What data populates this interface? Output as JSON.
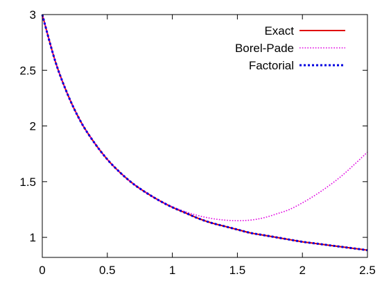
{
  "chart_data": {
    "type": "line",
    "title": "",
    "xlabel": "",
    "ylabel": "",
    "xlim": [
      0,
      2.5
    ],
    "ylim": [
      0.82,
      3.0
    ],
    "xticks": [
      0,
      0.5,
      1,
      1.5,
      2,
      2.5
    ],
    "xtick_labels": [
      "0",
      "0.5",
      "1",
      "1.5",
      "2",
      "2.5"
    ],
    "yticks": [
      1,
      1.5,
      2,
      2.5,
      3
    ],
    "ytick_labels": [
      "1",
      "1.5",
      "2",
      "2.5",
      "3"
    ],
    "grid": false,
    "legend": "top-right",
    "series": [
      {
        "name": "Exact",
        "color": "#e00000",
        "style": "solid",
        "x": [
          0,
          0.1,
          0.2,
          0.3,
          0.4,
          0.5,
          0.6,
          0.7,
          0.8,
          0.9,
          1.0,
          1.1,
          1.2,
          1.3,
          1.4,
          1.5,
          1.6,
          1.7,
          1.8,
          1.9,
          2.0,
          2.1,
          2.2,
          2.3,
          2.4,
          2.5
        ],
        "y": [
          3.0,
          2.58,
          2.27,
          2.03,
          1.85,
          1.7,
          1.58,
          1.48,
          1.4,
          1.33,
          1.27,
          1.22,
          1.17,
          1.13,
          1.1,
          1.07,
          1.04,
          1.02,
          1.0,
          0.98,
          0.96,
          0.945,
          0.93,
          0.915,
          0.9,
          0.885
        ]
      },
      {
        "name": "Borel-Pade",
        "color": "#e000e0",
        "style": "dotted",
        "x": [
          0,
          0.1,
          0.2,
          0.3,
          0.4,
          0.5,
          0.6,
          0.7,
          0.8,
          0.9,
          1.0,
          1.1,
          1.2,
          1.3,
          1.4,
          1.5,
          1.6,
          1.7,
          1.8,
          1.9,
          2.0,
          2.1,
          2.2,
          2.3,
          2.4,
          2.5
        ],
        "y": [
          3.0,
          2.58,
          2.27,
          2.03,
          1.85,
          1.7,
          1.58,
          1.48,
          1.4,
          1.33,
          1.275,
          1.23,
          1.195,
          1.17,
          1.155,
          1.15,
          1.155,
          1.175,
          1.21,
          1.25,
          1.31,
          1.38,
          1.46,
          1.55,
          1.655,
          1.765
        ]
      },
      {
        "name": "Factorial",
        "color": "#0000e0",
        "style": "dashed",
        "x": [
          0,
          0.1,
          0.2,
          0.3,
          0.4,
          0.5,
          0.6,
          0.7,
          0.8,
          0.9,
          1.0,
          1.1,
          1.2,
          1.3,
          1.4,
          1.5,
          1.6,
          1.7,
          1.8,
          1.9,
          2.0,
          2.1,
          2.2,
          2.3,
          2.4,
          2.5
        ],
        "y": [
          3.0,
          2.58,
          2.27,
          2.03,
          1.85,
          1.7,
          1.58,
          1.48,
          1.4,
          1.33,
          1.27,
          1.22,
          1.17,
          1.13,
          1.1,
          1.07,
          1.04,
          1.02,
          1.0,
          0.98,
          0.96,
          0.945,
          0.93,
          0.915,
          0.9,
          0.885
        ]
      }
    ]
  }
}
